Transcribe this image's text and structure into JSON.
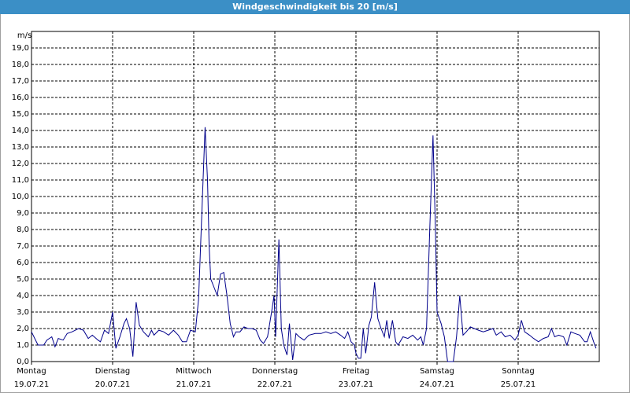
{
  "chart_data": {
    "type": "line",
    "title": "Windgeschwindigkeit bis 20 [m/s]",
    "y_label": "m/s",
    "xlim": [
      0,
      7
    ],
    "ylim": [
      0,
      20
    ],
    "xticks": [
      {
        "value": 0,
        "label": "Montag"
      },
      {
        "value": 1,
        "label": "Dienstag"
      },
      {
        "value": 2,
        "label": "Mittwoch"
      },
      {
        "value": 3,
        "label": "Donnerstag"
      },
      {
        "value": 4,
        "label": "Freitag"
      },
      {
        "value": 5,
        "label": "Samstag"
      },
      {
        "value": 6,
        "label": "Sonntag"
      }
    ],
    "xtick_dates": [
      "19.07.21",
      "20.07.21",
      "21.07.21",
      "22.07.21",
      "23.07.21",
      "24.07.21",
      "25.07.21"
    ],
    "yticks": [
      {
        "value": 0,
        "label": "0,0"
      },
      {
        "value": 1,
        "label": "1,0"
      },
      {
        "value": 2,
        "label": "2,0"
      },
      {
        "value": 3,
        "label": "3,0"
      },
      {
        "value": 4,
        "label": "4,0"
      },
      {
        "value": 5,
        "label": "5,0"
      },
      {
        "value": 6,
        "label": "6,0"
      },
      {
        "value": 7,
        "label": "7,0"
      },
      {
        "value": 8,
        "label": "8,0"
      },
      {
        "value": 9,
        "label": "9,0"
      },
      {
        "value": 10,
        "label": "10,0"
      },
      {
        "value": 11,
        "label": "11,0"
      },
      {
        "value": 12,
        "label": "12,0"
      },
      {
        "value": 13,
        "label": "13,0"
      },
      {
        "value": 14,
        "label": "14,0"
      },
      {
        "value": 15,
        "label": "15,0"
      },
      {
        "value": 16,
        "label": "16,0"
      },
      {
        "value": 17,
        "label": "17,0"
      },
      {
        "value": 18,
        "label": "18,0"
      },
      {
        "value": 19,
        "label": "19,0"
      }
    ],
    "grid": true,
    "series": [
      {
        "color": "#00008b",
        "x": [
          0,
          0.04,
          0.08,
          0.15,
          0.19,
          0.25,
          0.29,
          0.33,
          0.39,
          0.44,
          0.5,
          0.58,
          0.64,
          0.7,
          0.75,
          0.82,
          0.85,
          0.9,
          0.95,
          1.0,
          1.04,
          1.09,
          1.14,
          1.17,
          1.21,
          1.25,
          1.29,
          1.33,
          1.38,
          1.44,
          1.48,
          1.51,
          1.57,
          1.63,
          1.69,
          1.75,
          1.81,
          1.86,
          1.91,
          1.96,
          2.02,
          2.06,
          2.1,
          2.14,
          2.17,
          2.19,
          2.21,
          2.25,
          2.29,
          2.33,
          2.37,
          2.41,
          2.45,
          2.49,
          2.52,
          2.57,
          2.62,
          2.67,
          2.72,
          2.77,
          2.82,
          2.86,
          2.91,
          2.96,
          2.99,
          3.01,
          3.05,
          3.08,
          3.11,
          3.15,
          3.18,
          3.22,
          3.26,
          3.3,
          3.36,
          3.42,
          3.5,
          3.57,
          3.63,
          3.69,
          3.75,
          3.81,
          3.86,
          3.9,
          3.94,
          3.98,
          4.0,
          4.03,
          4.06,
          4.09,
          4.12,
          4.16,
          4.19,
          4.23,
          4.27,
          4.31,
          4.35,
          4.38,
          4.41,
          4.45,
          4.49,
          4.52,
          4.58,
          4.64,
          4.7,
          4.76,
          4.8,
          4.83,
          4.87,
          4.91,
          4.95,
          4.98,
          5.0,
          5.05,
          5.09,
          5.13,
          5.17,
          5.2,
          5.24,
          5.28,
          5.32,
          5.36,
          5.41,
          5.46,
          5.51,
          5.57,
          5.63,
          5.69,
          5.73,
          5.79,
          5.84,
          5.9,
          5.96,
          6.0,
          6.04,
          6.08,
          6.14,
          6.19,
          6.25,
          6.31,
          6.37,
          6.41,
          6.45,
          6.5,
          6.56,
          6.6,
          6.65,
          6.7,
          6.76,
          6.82,
          6.85,
          6.89,
          6.93,
          6.96
        ],
        "values": [
          1.8,
          1.4,
          1.0,
          1.0,
          1.3,
          1.5,
          0.9,
          1.4,
          1.3,
          1.7,
          1.8,
          2.0,
          1.9,
          1.4,
          1.6,
          1.3,
          1.2,
          1.9,
          1.7,
          3.0,
          0.8,
          1.5,
          2.3,
          2.6,
          2.0,
          0.3,
          3.6,
          2.2,
          1.8,
          1.5,
          1.9,
          1.6,
          1.9,
          1.8,
          1.6,
          1.9,
          1.6,
          1.2,
          1.2,
          1.9,
          1.8,
          3.8,
          9.0,
          14.2,
          11.0,
          7.0,
          5.0,
          4.5,
          4.0,
          5.3,
          5.4,
          4.0,
          2.3,
          1.5,
          1.8,
          1.8,
          2.1,
          2.0,
          2.0,
          1.9,
          1.3,
          1.1,
          1.5,
          3.0,
          4.0,
          1.5,
          7.4,
          2.0,
          1.0,
          0.4,
          2.3,
          0.1,
          1.7,
          1.5,
          1.3,
          1.6,
          1.7,
          1.7,
          1.8,
          1.7,
          1.8,
          1.6,
          1.4,
          1.8,
          1.2,
          1.0,
          0.5,
          0.2,
          0.2,
          2.0,
          0.5,
          2.2,
          2.7,
          4.8,
          2.6,
          2.0,
          1.5,
          2.5,
          1.4,
          2.5,
          1.2,
          1.0,
          1.5,
          1.4,
          1.6,
          1.3,
          1.5,
          1.0,
          2.0,
          8.0,
          13.7,
          8.0,
          3.0,
          2.3,
          1.5,
          0.0,
          0.0,
          0.0,
          1.5,
          4.0,
          1.6,
          1.8,
          2.1,
          2.0,
          1.9,
          1.8,
          1.9,
          2.0,
          1.6,
          1.8,
          1.5,
          1.6,
          1.3,
          1.6,
          2.5,
          1.8,
          1.6,
          1.4,
          1.2,
          1.4,
          1.5,
          2.0,
          1.5,
          1.6,
          1.5,
          1.0,
          1.8,
          1.7,
          1.6,
          1.2,
          1.2,
          1.8,
          1.2,
          0.8
        ]
      }
    ]
  }
}
